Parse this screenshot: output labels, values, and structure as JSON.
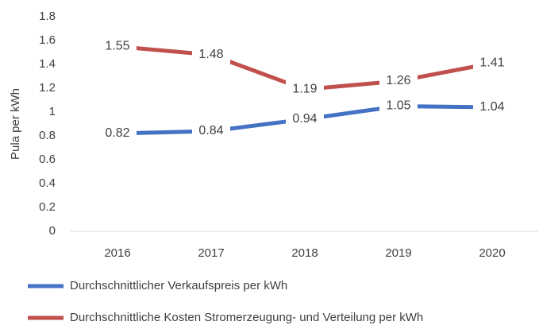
{
  "chart_data": {
    "type": "line",
    "categories": [
      "2016",
      "2017",
      "2018",
      "2019",
      "2020"
    ],
    "series": [
      {
        "name": "Durchschnittlicher Verkaufspreis per kWh",
        "color": "#4472c4",
        "values": [
          0.82,
          0.84,
          0.94,
          1.05,
          1.04
        ]
      },
      {
        "name": "Durchschnittliche Kosten Stromerzeugung- und Verteilung per kWh",
        "color": "#c0504d",
        "values": [
          1.55,
          1.48,
          1.19,
          1.26,
          1.41
        ]
      }
    ],
    "ylabel": "Pula per kWh",
    "ylim": [
      0,
      1.8
    ],
    "yticks": [
      0,
      0.2,
      0.4,
      0.6,
      0.8,
      1,
      1.2,
      1.4,
      1.6,
      1.8
    ],
    "grid": false,
    "legend": "bottom"
  }
}
